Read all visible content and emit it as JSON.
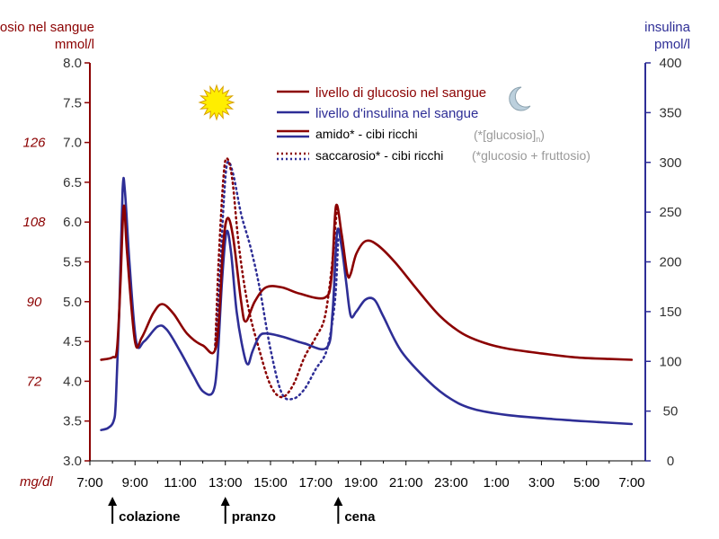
{
  "colors": {
    "glucose": "#8b0000",
    "insulin": "#2e2e96",
    "axis_left": "#8b0000",
    "axis_right": "#2e2e96",
    "note": "#999999",
    "sun": "#ffee00",
    "moon": "#bcd0dd"
  },
  "icons": {
    "sun": "sun-icon",
    "moon": "moon-icon"
  },
  "chart_data": {
    "type": "line",
    "title": "",
    "left_axis": {
      "label_line1": "glucosio nel sangue",
      "label_line2": "mmol/l",
      "ylim": [
        3.0,
        8.0
      ],
      "ticks": [
        "3.0",
        "3.5",
        "4.0",
        "4.5",
        "5.0",
        "5.5",
        "6.0",
        "6.5",
        "7.0",
        "7.5",
        "8.0"
      ],
      "mgdl_unit": "mg/dl",
      "mgdl_ticks": [
        {
          "label": "72",
          "at": 4.0
        },
        {
          "label": "90",
          "at": 5.0
        },
        {
          "label": "108",
          "at": 6.0
        },
        {
          "label": "126",
          "at": 7.0
        }
      ]
    },
    "right_axis": {
      "label_line1": "insulina",
      "label_line2": "pmol/l",
      "ylim": [
        0,
        400
      ],
      "ticks": [
        "0",
        "50",
        "100",
        "150",
        "200",
        "250",
        "300",
        "350",
        "400"
      ]
    },
    "x_axis": {
      "unit": "hours from 07:00",
      "xlim": [
        0,
        24.6
      ],
      "tick_labels": [
        "7:00",
        "9:00",
        "11:00",
        "13:00",
        "15:00",
        "17:00",
        "19:00",
        "21:00",
        "23:00",
        "1:00",
        "3:00",
        "5:00",
        "7:00"
      ]
    },
    "meals": [
      {
        "label": "colazione",
        "at": 1.0
      },
      {
        "label": "pranzo",
        "at": 6.0
      },
      {
        "label": "cena",
        "at": 11.0
      }
    ],
    "legend": {
      "glucose": "livello di glucosio nel sangue",
      "insulin": "livello d'insulina nel sangue",
      "starch": "amido* - cibi ricchi",
      "starch_note": "(*[glucosio]",
      "starch_note_sub": "n",
      "starch_note_end": ")",
      "sucrose": "saccarosio* - cibi ricchi",
      "sucrose_note": "(*glucosio + fruttosio)"
    },
    "series": [
      {
        "name": "livello di glucosio nel sangue",
        "axis": "left",
        "style": "solid",
        "points": [
          [
            0.5,
            4.27
          ],
          [
            1.0,
            4.3
          ],
          [
            1.2,
            4.4
          ],
          [
            1.35,
            5.2
          ],
          [
            1.5,
            6.2
          ],
          [
            1.65,
            5.6
          ],
          [
            2.0,
            4.5
          ],
          [
            2.3,
            4.55
          ],
          [
            2.8,
            4.85
          ],
          [
            3.2,
            4.97
          ],
          [
            3.7,
            4.85
          ],
          [
            4.3,
            4.6
          ],
          [
            5.0,
            4.45
          ],
          [
            5.6,
            4.45
          ],
          [
            5.9,
            5.7
          ],
          [
            6.1,
            6.05
          ],
          [
            6.35,
            5.8
          ],
          [
            6.7,
            5.0
          ],
          [
            6.9,
            4.75
          ],
          [
            7.3,
            5.0
          ],
          [
            7.8,
            5.18
          ],
          [
            8.5,
            5.18
          ],
          [
            9.3,
            5.1
          ],
          [
            10.4,
            5.05
          ],
          [
            10.7,
            5.3
          ],
          [
            10.9,
            6.2
          ],
          [
            11.15,
            5.85
          ],
          [
            11.4,
            5.35
          ],
          [
            11.55,
            5.35
          ],
          [
            11.8,
            5.6
          ],
          [
            12.2,
            5.76
          ],
          [
            12.7,
            5.72
          ],
          [
            13.5,
            5.5
          ],
          [
            14.5,
            5.15
          ],
          [
            15.5,
            4.82
          ],
          [
            16.5,
            4.6
          ],
          [
            17.5,
            4.48
          ],
          [
            18.5,
            4.41
          ],
          [
            20.0,
            4.35
          ],
          [
            21.5,
            4.3
          ],
          [
            23.0,
            4.28
          ],
          [
            24.0,
            4.27
          ]
        ]
      },
      {
        "name": "livello d'insulina nel sangue",
        "axis": "right",
        "style": "solid",
        "points": [
          [
            0.5,
            31
          ],
          [
            0.8,
            33
          ],
          [
            1.05,
            40
          ],
          [
            1.15,
            60
          ],
          [
            1.3,
            150
          ],
          [
            1.45,
            272
          ],
          [
            1.55,
            272
          ],
          [
            1.75,
            200
          ],
          [
            2.05,
            120
          ],
          [
            2.4,
            120
          ],
          [
            3.0,
            135
          ],
          [
            3.4,
            132
          ],
          [
            4.0,
            110
          ],
          [
            4.6,
            85
          ],
          [
            5.0,
            70
          ],
          [
            5.45,
            69
          ],
          [
            5.65,
            100
          ],
          [
            5.85,
            180
          ],
          [
            6.05,
            230
          ],
          [
            6.25,
            210
          ],
          [
            6.5,
            150
          ],
          [
            6.8,
            110
          ],
          [
            7.0,
            97
          ],
          [
            7.2,
            110
          ],
          [
            7.5,
            125
          ],
          [
            7.8,
            128
          ],
          [
            8.5,
            125
          ],
          [
            9.5,
            118
          ],
          [
            10.5,
            114
          ],
          [
            10.75,
            150
          ],
          [
            10.95,
            230
          ],
          [
            11.15,
            215
          ],
          [
            11.35,
            180
          ],
          [
            11.55,
            146
          ],
          [
            11.8,
            150
          ],
          [
            12.2,
            162
          ],
          [
            12.6,
            162
          ],
          [
            13.0,
            145
          ],
          [
            13.8,
            110
          ],
          [
            15.0,
            80
          ],
          [
            16.0,
            62
          ],
          [
            17.0,
            52
          ],
          [
            18.5,
            46
          ],
          [
            20.5,
            42
          ],
          [
            22.5,
            39
          ],
          [
            24.0,
            37
          ]
        ]
      },
      {
        "name": "amido* - cibi ricchi",
        "axis": "left",
        "style": "dotted",
        "points": [
          [
            5.55,
            4.4
          ],
          [
            5.7,
            5.5
          ],
          [
            5.9,
            6.5
          ],
          [
            6.05,
            6.8
          ],
          [
            6.3,
            6.55
          ],
          [
            6.6,
            5.7
          ],
          [
            7.0,
            4.95
          ],
          [
            7.5,
            4.4
          ],
          [
            8.0,
            3.95
          ],
          [
            8.5,
            3.8
          ],
          [
            9.0,
            3.95
          ],
          [
            9.5,
            4.3
          ],
          [
            10.0,
            4.55
          ],
          [
            10.4,
            4.8
          ],
          [
            10.7,
            5.4
          ],
          [
            10.95,
            6.2
          ]
        ]
      },
      {
        "name": "saccarosio* - cibi ricchi",
        "axis": "left",
        "style": "dotted",
        "points": [
          [
            5.55,
            4.45
          ],
          [
            5.75,
            5.3
          ],
          [
            5.95,
            6.35
          ],
          [
            6.1,
            6.75
          ],
          [
            6.35,
            6.6
          ],
          [
            6.7,
            6.1
          ],
          [
            7.1,
            5.7
          ],
          [
            7.5,
            5.2
          ],
          [
            8.0,
            4.4
          ],
          [
            8.5,
            3.85
          ],
          [
            9.0,
            3.78
          ],
          [
            9.5,
            3.9
          ],
          [
            10.0,
            4.15
          ],
          [
            10.5,
            4.4
          ],
          [
            10.85,
            5.0
          ],
          [
            11.0,
            5.8
          ]
        ]
      }
    ]
  }
}
